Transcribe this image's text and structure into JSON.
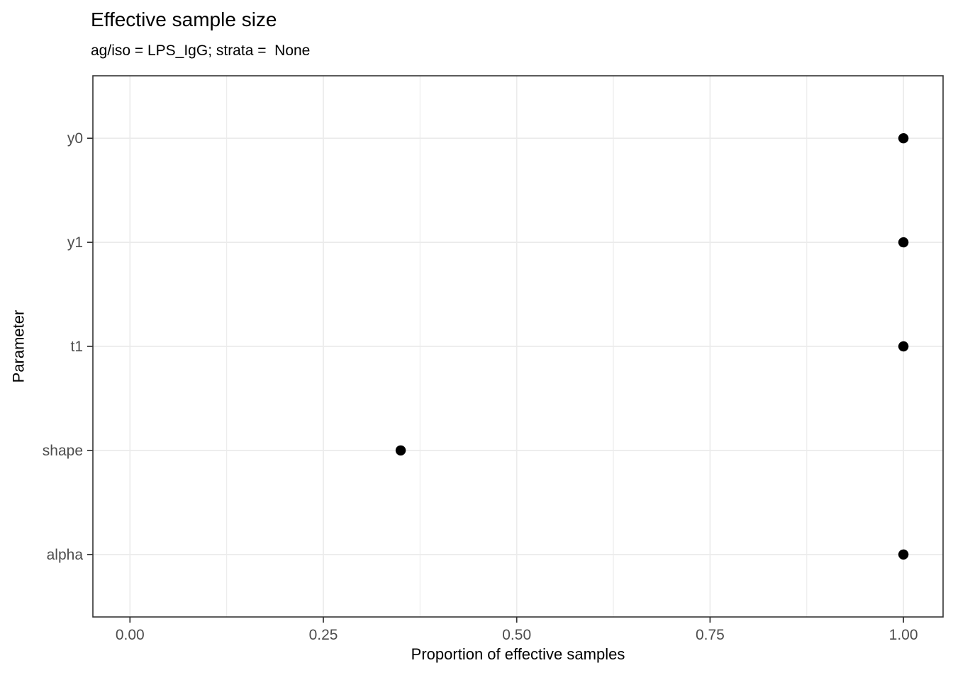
{
  "chart_data": {
    "type": "scatter",
    "variant": "horizontal-dot-plot",
    "title": "Effective sample size",
    "subtitle": "ag/iso = LPS_IgG; strata =  None",
    "xlabel": "Proportion of effective samples",
    "ylabel": "Parameter",
    "categories": [
      "y0",
      "y1",
      "t1",
      "shape",
      "alpha"
    ],
    "values": [
      1.0,
      1.0,
      1.0,
      0.35,
      1.0
    ],
    "x_tick_values": [
      0,
      0.25,
      0.5,
      0.75,
      1
    ],
    "x_tick_labels": [
      "0.00",
      "0.25",
      "0.50",
      "0.75",
      "1.00"
    ],
    "x_minor_gridline_values": [
      0.125,
      0.375,
      0.625,
      0.875
    ],
    "xlim": [
      -0.048,
      1.048
    ],
    "grid": "on",
    "legend": "none",
    "colors": {
      "point": "#000000",
      "gridline": "#ebebeb",
      "panel_border": "#333333",
      "axis_tick": "#333333",
      "tick_label": "#4d4d4d",
      "title_text": "#000000",
      "background": "#ffffff"
    }
  }
}
